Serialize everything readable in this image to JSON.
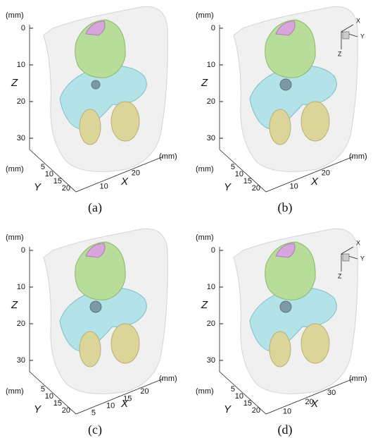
{
  "panels": [
    {
      "label": "(a)",
      "z_axis": {
        "title": "Z",
        "unit": "(mm)",
        "ticks": [
          "0",
          "10",
          "20",
          "30"
        ]
      },
      "y_axis": {
        "title": "Y",
        "unit": "(mm)",
        "ticks": [
          "5",
          "10",
          "15",
          "20"
        ]
      },
      "x_axis": {
        "title": "X",
        "unit": "(mm)",
        "ticks": [
          "10",
          "20"
        ]
      }
    },
    {
      "label": "(b)",
      "z_axis": {
        "title": "Z",
        "unit": "(mm)",
        "ticks": [
          "0",
          "10",
          "20",
          "30"
        ]
      },
      "y_axis": {
        "title": "Y",
        "unit": "(mm)",
        "ticks": [
          "5",
          "10",
          "15",
          "20"
        ]
      },
      "x_axis": {
        "title": "X",
        "unit": "(mm)",
        "ticks": [
          "10",
          "20"
        ]
      },
      "triad": [
        "X",
        "Y",
        "Z"
      ]
    },
    {
      "label": "(c)",
      "z_axis": {
        "title": "Z",
        "unit": "(mm)",
        "ticks": [
          "0",
          "10",
          "20",
          "30"
        ]
      },
      "y_axis": {
        "title": "Y",
        "unit": "(mm)",
        "ticks": [
          "5",
          "10",
          "15",
          "20"
        ]
      },
      "x_axis": {
        "title": "X",
        "unit": "(mm)",
        "ticks": [
          "5",
          "10",
          "15",
          "20"
        ]
      }
    },
    {
      "label": "(d)",
      "z_axis": {
        "title": "Z",
        "unit": "(mm)",
        "ticks": [
          "0",
          "10",
          "20",
          "30"
        ]
      },
      "y_axis": {
        "title": "Y",
        "unit": "(mm)",
        "ticks": [
          "5",
          "10",
          "15",
          "20"
        ]
      },
      "x_axis": {
        "title": "X",
        "unit": "(mm)",
        "ticks": [
          "10",
          "20",
          "30"
        ]
      },
      "triad": [
        "X",
        "Y",
        "Z"
      ]
    }
  ]
}
